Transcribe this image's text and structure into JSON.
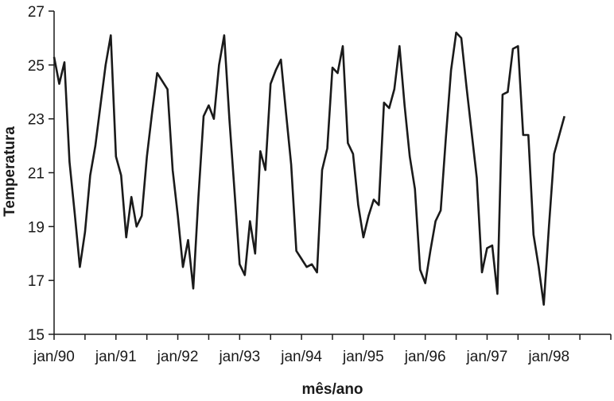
{
  "chart_data": {
    "type": "line",
    "xlabel": "mês/ano",
    "ylabel": "Temperatura",
    "ylim": [
      15,
      27
    ],
    "yticks": [
      15,
      17,
      19,
      21,
      23,
      25,
      27
    ],
    "xticks": [
      {
        "label": "jan/90",
        "index": 0
      },
      {
        "label": "jan/91",
        "index": 12
      },
      {
        "label": "jan/92",
        "index": 24
      },
      {
        "label": "jan/93",
        "index": 36
      },
      {
        "label": "jan/94",
        "index": 48
      },
      {
        "label": "jan/95",
        "index": 60
      },
      {
        "label": "jan/96",
        "index": 72
      },
      {
        "label": "jan/97",
        "index": 84
      },
      {
        "label": "jan/98",
        "index": 96
      }
    ],
    "xlim": [
      0,
      108
    ],
    "grid": false,
    "legend": "none",
    "series": [
      {
        "values": [
          25.3,
          24.3,
          25.1,
          21.4,
          19.5,
          17.5,
          18.8,
          20.9,
          22.0,
          23.5,
          25.0,
          26.1,
          21.6,
          20.9,
          18.6,
          20.1,
          19.0,
          19.4,
          21.6,
          23.2,
          24.7,
          24.4,
          24.1,
          21.1,
          19.4,
          17.5,
          18.5,
          16.7,
          20.1,
          23.1,
          23.5,
          23.0,
          25.0,
          26.1,
          23.0,
          20.3,
          17.6,
          17.2,
          19.2,
          18.0,
          21.8,
          21.1,
          24.3,
          24.8,
          25.2,
          23.2,
          21.3,
          18.1,
          17.8,
          17.5,
          17.6,
          17.3,
          21.1,
          21.9,
          24.9,
          24.7,
          25.7,
          22.1,
          21.7,
          19.8,
          18.6,
          19.4,
          20.0,
          19.8,
          23.6,
          23.4,
          24.1,
          25.7,
          23.5,
          21.6,
          20.4,
          17.4,
          16.9,
          18.1,
          19.2,
          19.6,
          22.3,
          24.8,
          26.2,
          26.0,
          24.2,
          22.5,
          20.8,
          17.3,
          18.2,
          18.3,
          16.5,
          23.9,
          24.0,
          25.6,
          25.7,
          22.4,
          22.4,
          18.7,
          17.5,
          16.1,
          19.0,
          21.7,
          22.4,
          23.1
        ]
      }
    ]
  }
}
